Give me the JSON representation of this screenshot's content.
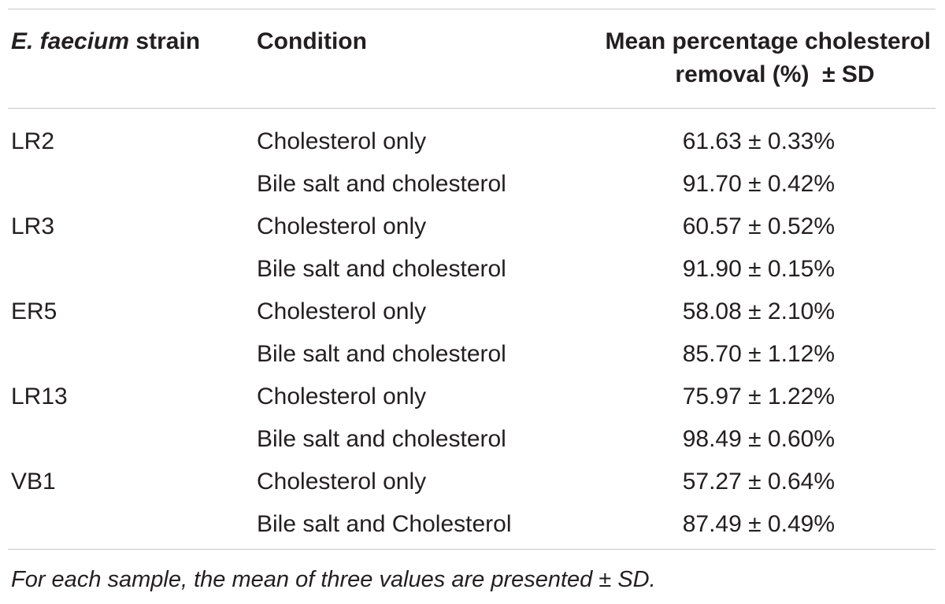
{
  "table": {
    "header": {
      "strain_species": "E. faecium",
      "strain_word": "strain",
      "condition": "Condition",
      "mean_line1": "Mean percentage cholesterol",
      "mean_line2": "removal (%)  ± SD"
    },
    "rows": [
      {
        "strain": "LR2",
        "condition": "Cholesterol only",
        "value": "61.63 ± 0.33%"
      },
      {
        "strain": "",
        "condition": "Bile salt and cholesterol",
        "value": "91.70 ± 0.42%"
      },
      {
        "strain": "LR3",
        "condition": "Cholesterol only",
        "value": "60.57 ± 0.52%"
      },
      {
        "strain": "",
        "condition": "Bile salt and cholesterol",
        "value": "91.90 ± 0.15%"
      },
      {
        "strain": "ER5",
        "condition": "Cholesterol only",
        "value": "58.08 ± 2.10%"
      },
      {
        "strain": "",
        "condition": "Bile salt and cholesterol",
        "value": "85.70 ± 1.12%"
      },
      {
        "strain": "LR13",
        "condition": "Cholesterol only",
        "value": "75.97 ± 1.22%"
      },
      {
        "strain": "",
        "condition": "Bile salt and cholesterol",
        "value": "98.49 ± 0.60%"
      },
      {
        "strain": "VB1",
        "condition": "Cholesterol only",
        "value": "57.27 ± 0.64%"
      },
      {
        "strain": "",
        "condition": "Bile salt and Cholesterol",
        "value": "87.49 ± 0.49%"
      }
    ],
    "footnote": "For each sample, the mean of three values are presented ± SD."
  }
}
